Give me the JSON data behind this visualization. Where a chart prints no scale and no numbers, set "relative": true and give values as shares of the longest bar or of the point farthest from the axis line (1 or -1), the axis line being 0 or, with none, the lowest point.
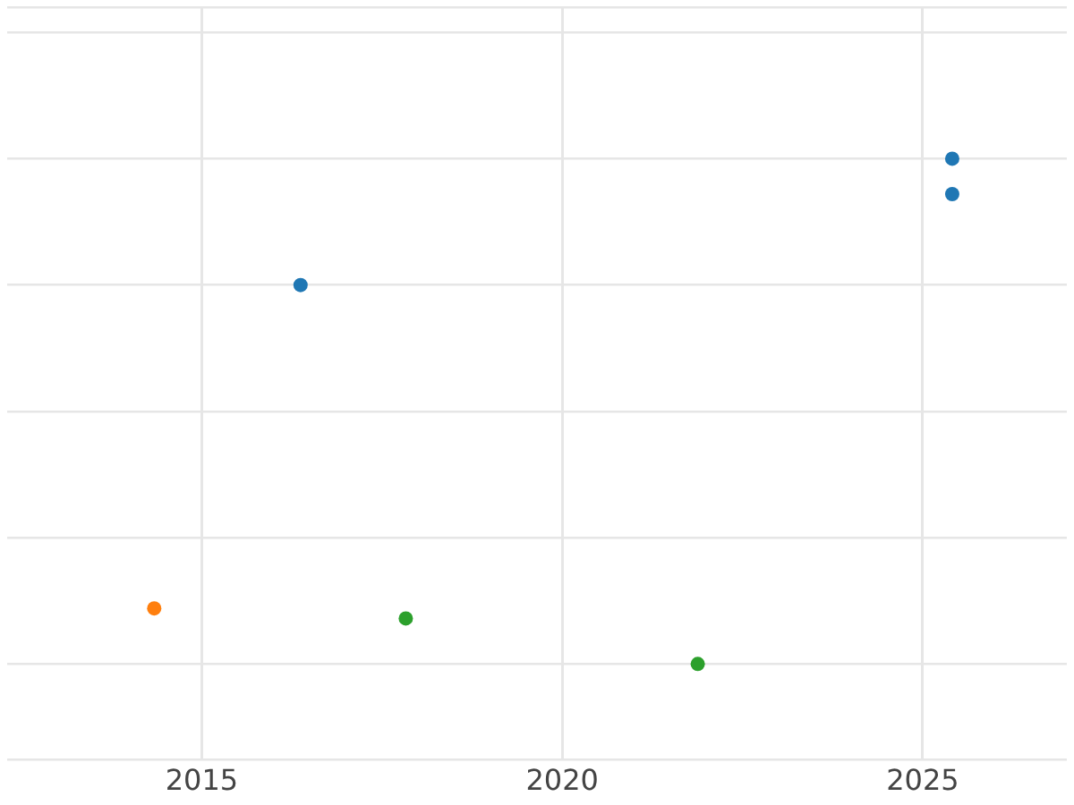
{
  "chart_data": {
    "type": "scatter",
    "relative": true,
    "grid": true,
    "marker": "circle",
    "xlim": [
      2012.3,
      2027
    ],
    "xticks": [
      2015,
      2020,
      2025
    ],
    "series": [
      {
        "color": "#1f77b4",
        "x": [
          2016.37,
          2025.41,
          2025.41
        ],
        "values": [
          0.75,
          1,
          0.93
        ]
      },
      {
        "color": "#ff7f0e",
        "x": [
          2014.34
        ],
        "values": [
          0.11
        ]
      },
      {
        "color": "#2ca02c",
        "x": [
          2017.83,
          2021.88
        ],
        "values": [
          0.09,
          0
        ]
      }
    ]
  }
}
